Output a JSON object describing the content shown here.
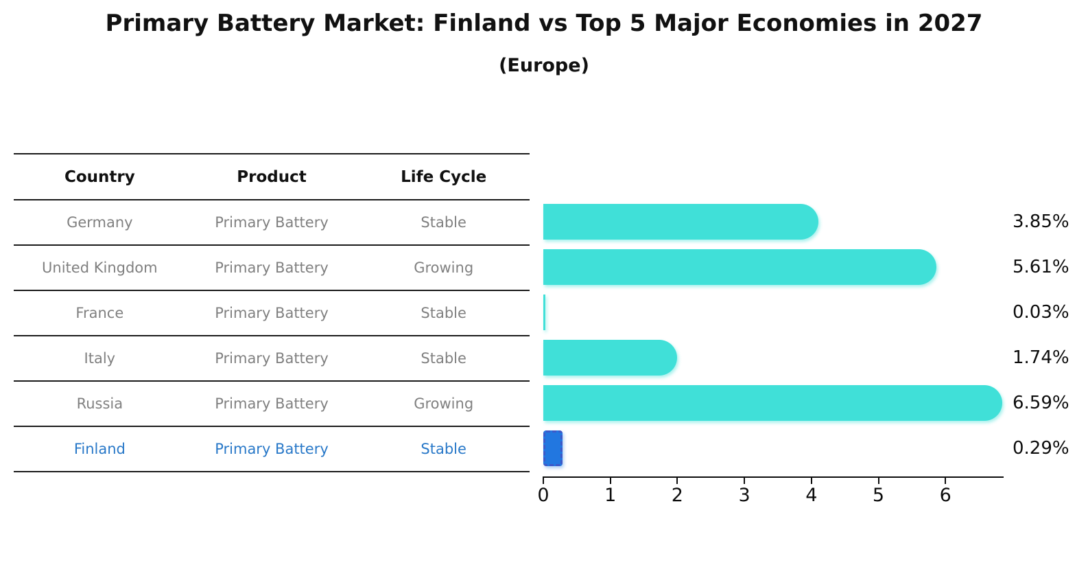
{
  "title": "Primary Battery Market: Finland vs Top 5 Major Economies in 2027",
  "subtitle": "(Europe)",
  "table": {
    "headers": [
      "Country",
      "Product",
      "Life Cycle"
    ],
    "rows": [
      {
        "country": "Germany",
        "product": "Primary Battery",
        "life_cycle": "Stable",
        "highlight": false
      },
      {
        "country": "United Kingdom",
        "product": "Primary Battery",
        "life_cycle": "Growing",
        "highlight": false
      },
      {
        "country": "France",
        "product": "Primary Battery",
        "life_cycle": "Stable",
        "highlight": false
      },
      {
        "country": "Italy",
        "product": "Primary Battery",
        "life_cycle": "Stable",
        "highlight": false
      },
      {
        "country": "Russia",
        "product": "Primary Battery",
        "life_cycle": "Growing",
        "highlight": false
      },
      {
        "country": "Finland",
        "product": "Primary Battery",
        "life_cycle": "Stable",
        "highlight": true
      }
    ]
  },
  "chart_data": {
    "type": "bar",
    "orientation": "horizontal",
    "categories": [
      "Germany",
      "United Kingdom",
      "France",
      "Italy",
      "Russia",
      "Finland"
    ],
    "values": [
      3.85,
      5.61,
      0.03,
      1.74,
      6.59,
      0.29
    ],
    "value_labels": [
      "3.85%",
      "5.61%",
      "0.03%",
      "1.74%",
      "6.59%",
      "0.29%"
    ],
    "highlight_index": 5,
    "x_ticks": [
      "0",
      "1",
      "2",
      "3",
      "4",
      "5",
      "6"
    ],
    "xlim": [
      0,
      6.86
    ],
    "grid": false,
    "legend": "none",
    "title": "Primary Battery Market: Finland vs Top 5 Major Economies in 2027 (Europe)",
    "xlabel": "",
    "ylabel": ""
  },
  "colors": {
    "bar_fill": "#40E0D8",
    "highlight_fill": "#2277E0",
    "highlight_border": "#3D59C8",
    "highlight_text": "#2878C8",
    "row_text": "#808080",
    "header_text": "#111111",
    "line": "#1a1a1a"
  }
}
